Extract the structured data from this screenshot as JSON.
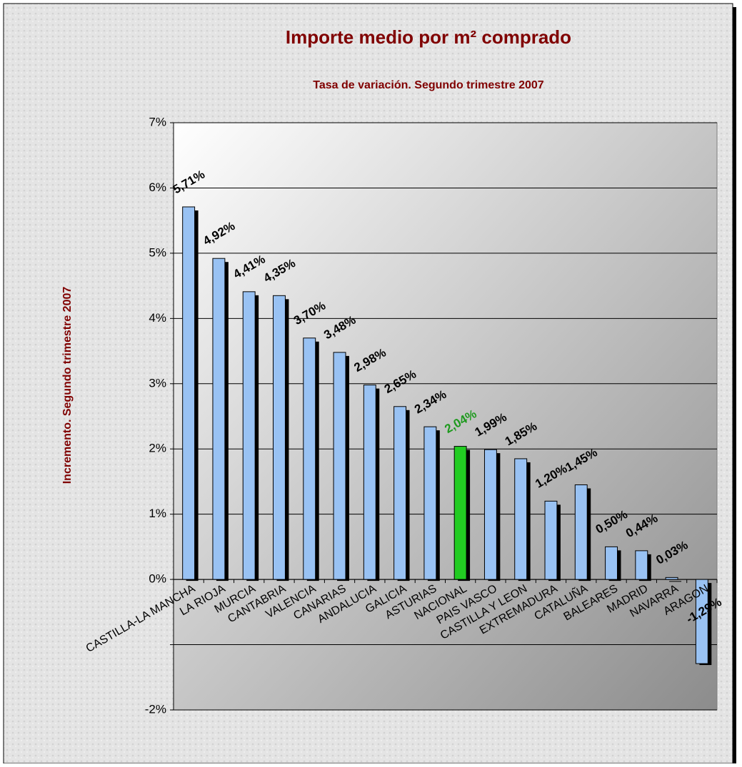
{
  "chart_data": {
    "type": "bar",
    "title": "Importe medio por m² comprado",
    "subtitle": "Tasa de variación. Segundo trimestre 2007",
    "y_label": "Incremento. Segundo trimestre 2007",
    "categories": [
      "CASTILLA-LA MANCHA",
      "LA RIOJA",
      "MURCIA",
      "CANTABRIA",
      "VALENCIA",
      "CANARIAS",
      "ANDALUCIA",
      "GALICIA",
      "ASTURIAS",
      "NACIONAL",
      "PAIS VASCO",
      "CASTILLA Y LEON",
      "EXTREMADURA",
      "CATALUÑA",
      "BALEARES",
      "MADRID",
      "NAVARRA",
      "ARAGON"
    ],
    "values": [
      5.71,
      4.92,
      4.41,
      4.35,
      3.7,
      3.48,
      2.98,
      2.65,
      2.34,
      2.04,
      1.99,
      1.85,
      1.2,
      1.45,
      0.5,
      0.44,
      0.03,
      -1.29
    ],
    "value_labels": [
      "5,71%",
      "4,92%",
      "4,41%",
      "4,35%",
      "3,70%",
      "3,48%",
      "2,98%",
      "2,65%",
      "2,34%",
      "2,04%",
      "1,99%",
      "1,85%",
      "1,20%",
      "1,45%",
      "0,50%",
      "0,44%",
      "0,03%",
      "-1,29%"
    ],
    "colors": [
      "#99c2f3",
      "#99c2f3",
      "#99c2f3",
      "#99c2f3",
      "#99c2f3",
      "#99c2f3",
      "#99c2f3",
      "#99c2f3",
      "#99c2f3",
      "#22cc22",
      "#99c2f3",
      "#99c2f3",
      "#99c2f3",
      "#99c2f3",
      "#99c2f3",
      "#99c2f3",
      "#99c2f3",
      "#99c2f3"
    ],
    "label_colors": [
      "#000000",
      "#000000",
      "#000000",
      "#000000",
      "#000000",
      "#000000",
      "#000000",
      "#000000",
      "#000000",
      "#1e9a1e",
      "#000000",
      "#000000",
      "#000000",
      "#000000",
      "#000000",
      "#000000",
      "#000000",
      "#000000"
    ],
    "ylim": [
      -2,
      7
    ],
    "yticks": [
      {
        "value": -2,
        "label": "-2%"
      },
      {
        "value": -1,
        "label": ""
      },
      {
        "value": 0,
        "label": "0%"
      },
      {
        "value": 1,
        "label": "1%"
      },
      {
        "value": 2,
        "label": "2%"
      },
      {
        "value": 3,
        "label": "3%"
      },
      {
        "value": 4,
        "label": "4%"
      },
      {
        "value": 5,
        "label": "5%"
      },
      {
        "value": 6,
        "label": "6%"
      },
      {
        "value": 7,
        "label": "7%"
      }
    ],
    "grid": true
  }
}
